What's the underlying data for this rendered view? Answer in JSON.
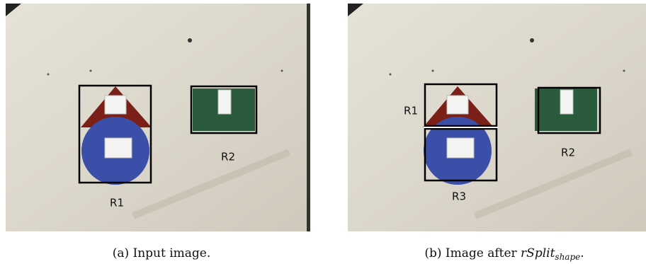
{
  "panels": [
    {
      "regions": [
        "R1",
        "R2"
      ],
      "caption": "(a) Input image."
    },
    {
      "regions": [
        "R1",
        "R2",
        "R3"
      ],
      "caption_prefix": "(b) Image after ",
      "caption_math": "rSplit",
      "caption_subscript": "shape",
      "caption_suffix": "."
    }
  ]
}
